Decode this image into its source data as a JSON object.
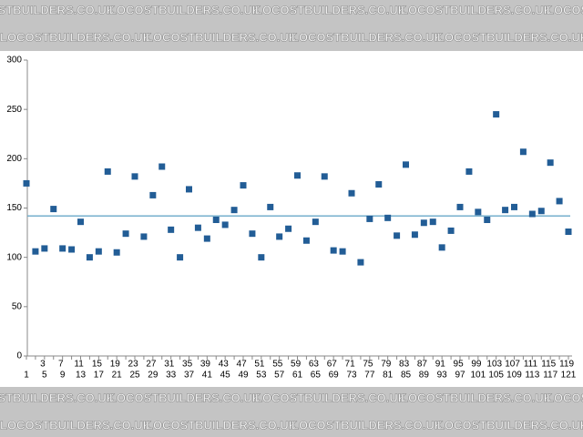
{
  "watermark": "LOCOSTBUILDERS.CO.UK",
  "chart_data": {
    "type": "scatter",
    "x": [
      1,
      3,
      5,
      7,
      9,
      11,
      13,
      15,
      17,
      19,
      21,
      23,
      25,
      27,
      29,
      31,
      33,
      35,
      37,
      39,
      41,
      43,
      45,
      47,
      49,
      51,
      53,
      55,
      57,
      59,
      61,
      63,
      65,
      67,
      69,
      71,
      73,
      75,
      77,
      79,
      81,
      83,
      85,
      87,
      89,
      91,
      93,
      95,
      97,
      99,
      101,
      103,
      105,
      107,
      109,
      111,
      113,
      115,
      117,
      119,
      121
    ],
    "values": [
      175,
      106,
      109,
      149,
      109,
      108,
      136,
      100,
      106,
      187,
      105,
      124,
      182,
      121,
      163,
      192,
      128,
      100,
      169,
      130,
      119,
      138,
      133,
      148,
      173,
      124,
      100,
      151,
      121,
      129,
      183,
      117,
      136,
      182,
      107,
      106,
      165,
      95,
      139,
      174,
      140,
      122,
      194,
      123,
      135,
      136,
      110,
      127,
      151,
      187,
      146,
      138,
      245,
      148,
      151,
      207,
      144,
      147,
      196,
      157,
      126
    ],
    "color": "#225d96",
    "reference_line": 142,
    "reference_color": "#6aa8c8",
    "xlim": [
      1,
      121
    ],
    "xticks": [
      1,
      3,
      5,
      7,
      9,
      11,
      13,
      15,
      17,
      19,
      21,
      23,
      25,
      27,
      29,
      31,
      33,
      35,
      37,
      39,
      41,
      43,
      45,
      47,
      49,
      51,
      53,
      55,
      57,
      59,
      61,
      63,
      65,
      67,
      69,
      71,
      73,
      75,
      77,
      79,
      81,
      83,
      85,
      87,
      89,
      91,
      93,
      95,
      97,
      99,
      101,
      103,
      105,
      107,
      109,
      111,
      113,
      115,
      117,
      119,
      121
    ],
    "ylim": [
      0,
      300
    ],
    "yticks": [
      0,
      50,
      100,
      150,
      200,
      250,
      300
    ],
    "grid": false
  }
}
